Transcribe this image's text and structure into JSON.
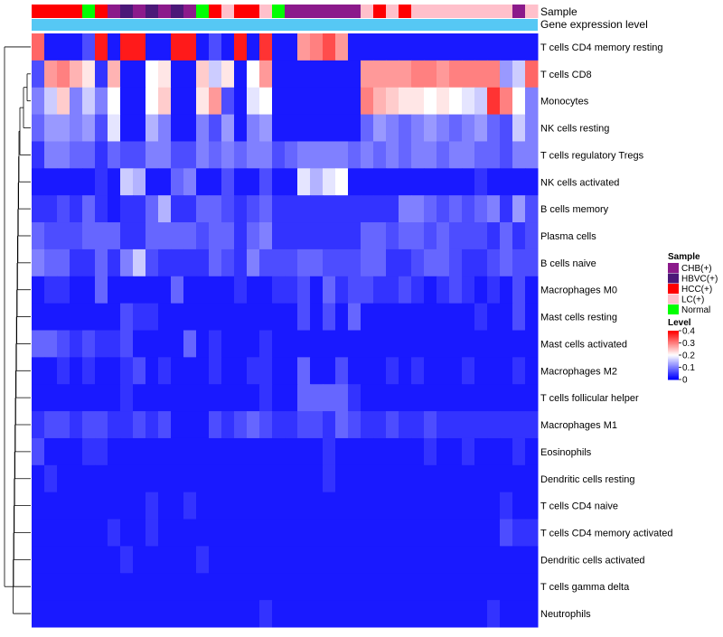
{
  "chart_data": {
    "type": "heatmap",
    "annotation_labels": [
      "Sample",
      "Gene expression level"
    ],
    "rows": [
      "T cells CD4 memory resting",
      "T cells CD8",
      "Monocytes",
      "NK cells resting",
      "T cells regulatory  Tregs",
      "NK cells activated",
      "B cells memory",
      "Plasma cells",
      "B cells naive",
      "Macrophages M0",
      "Mast cells resting",
      "Mast cells activated",
      "Macrophages M2",
      "T cells follicular helper",
      "Macrophages M1",
      "Eosinophils",
      "Dendritic cells resting",
      "T cells CD4 naive",
      "T cells CD4 memory activated",
      "Dendritic cells activated",
      "T cells gamma delta",
      "Neutrophils"
    ],
    "sample_groups": [
      "HCC(+)",
      "HCC(+)",
      "HCC(+)",
      "HCC(+)",
      "Normal",
      "HCC(+)",
      "CHB(+)",
      "HBVC(+)",
      "CHB(+)",
      "HBVC(+)",
      "CHB(+)",
      "HBVC(+)",
      "CHB(+)",
      "Normal",
      "HCC(+)",
      "LC(+)",
      "HCC(+)",
      "HCC(+)",
      "LC(+)",
      "Normal",
      "CHB(+)",
      "CHB(+)",
      "CHB(+)",
      "CHB(+)",
      "CHB(+)",
      "CHB(+)",
      "LC(+)",
      "HCC(+)",
      "LC(+)",
      "HCC(+)",
      "LC(+)",
      "LC(+)",
      "LC(+)",
      "LC(+)",
      "LC(+)",
      "LC(+)",
      "LC(+)",
      "LC(+)",
      "CHB(+)",
      "LC(+)"
    ],
    "values": [
      [
        0.32,
        0.02,
        0.02,
        0.02,
        0.06,
        0.38,
        0.02,
        0.38,
        0.38,
        0.02,
        0.02,
        0.38,
        0.38,
        0.02,
        0.06,
        0.02,
        0.38,
        0.02,
        0.36,
        0.02,
        0.02,
        0.28,
        0.3,
        0.34,
        0.28,
        0.02,
        0.02,
        0.02,
        0.02,
        0.02,
        0.02,
        0.02,
        0.02,
        0.02,
        0.02,
        0.02,
        0.02,
        0.02,
        0.02,
        0.02
      ],
      [
        0.06,
        0.28,
        0.3,
        0.26,
        0.22,
        0.04,
        0.26,
        0.02,
        0.02,
        0.2,
        0.22,
        0.02,
        0.02,
        0.24,
        0.16,
        0.22,
        0.02,
        0.2,
        0.28,
        0.02,
        0.02,
        0.02,
        0.02,
        0.02,
        0.02,
        0.02,
        0.28,
        0.28,
        0.28,
        0.28,
        0.3,
        0.3,
        0.28,
        0.3,
        0.3,
        0.3,
        0.3,
        0.12,
        0.16,
        0.32
      ],
      [
        0.1,
        0.16,
        0.24,
        0.1,
        0.16,
        0.1,
        0.2,
        0.02,
        0.02,
        0.2,
        0.24,
        0.02,
        0.02,
        0.22,
        0.28,
        0.06,
        0.02,
        0.18,
        0.2,
        0.02,
        0.02,
        0.02,
        0.02,
        0.02,
        0.02,
        0.02,
        0.3,
        0.26,
        0.24,
        0.22,
        0.22,
        0.2,
        0.22,
        0.2,
        0.18,
        0.16,
        0.36,
        0.3,
        0.2,
        0.1
      ],
      [
        0.08,
        0.12,
        0.12,
        0.1,
        0.12,
        0.06,
        0.18,
        0.02,
        0.02,
        0.14,
        0.1,
        0.02,
        0.02,
        0.1,
        0.06,
        0.12,
        0.02,
        0.1,
        0.12,
        0.02,
        0.02,
        0.02,
        0.02,
        0.02,
        0.02,
        0.02,
        0.08,
        0.12,
        0.1,
        0.08,
        0.1,
        0.12,
        0.1,
        0.08,
        0.1,
        0.12,
        0.08,
        0.06,
        0.16,
        0.1
      ],
      [
        0.04,
        0.1,
        0.1,
        0.08,
        0.08,
        0.04,
        0.08,
        0.06,
        0.06,
        0.1,
        0.1,
        0.06,
        0.06,
        0.1,
        0.08,
        0.1,
        0.08,
        0.1,
        0.1,
        0.06,
        0.08,
        0.1,
        0.1,
        0.1,
        0.1,
        0.08,
        0.1,
        0.08,
        0.1,
        0.08,
        0.1,
        0.1,
        0.08,
        0.1,
        0.1,
        0.08,
        0.08,
        0.06,
        0.1,
        0.1
      ],
      [
        0.02,
        0.02,
        0.02,
        0.02,
        0.02,
        0.04,
        0.02,
        0.16,
        0.14,
        0.02,
        0.02,
        0.08,
        0.1,
        0.02,
        0.02,
        0.06,
        0.02,
        0.02,
        0.06,
        0.02,
        0.02,
        0.18,
        0.14,
        0.18,
        0.2,
        0.02,
        0.02,
        0.02,
        0.02,
        0.02,
        0.02,
        0.02,
        0.02,
        0.02,
        0.02,
        0.04,
        0.02,
        0.02,
        0.02,
        0.02
      ],
      [
        0.04,
        0.04,
        0.06,
        0.04,
        0.08,
        0.04,
        0.02,
        0.04,
        0.04,
        0.08,
        0.14,
        0.04,
        0.04,
        0.08,
        0.08,
        0.06,
        0.04,
        0.06,
        0.08,
        0.04,
        0.04,
        0.04,
        0.04,
        0.04,
        0.04,
        0.04,
        0.04,
        0.04,
        0.04,
        0.1,
        0.1,
        0.08,
        0.06,
        0.08,
        0.06,
        0.08,
        0.1,
        0.04,
        0.12,
        0.06
      ],
      [
        0.08,
        0.06,
        0.06,
        0.06,
        0.08,
        0.08,
        0.08,
        0.04,
        0.04,
        0.08,
        0.08,
        0.08,
        0.08,
        0.06,
        0.08,
        0.08,
        0.04,
        0.08,
        0.1,
        0.04,
        0.04,
        0.04,
        0.04,
        0.04,
        0.04,
        0.04,
        0.08,
        0.08,
        0.06,
        0.08,
        0.08,
        0.06,
        0.08,
        0.06,
        0.06,
        0.06,
        0.04,
        0.08,
        0.04,
        0.06
      ],
      [
        0.1,
        0.08,
        0.08,
        0.04,
        0.04,
        0.08,
        0.04,
        0.1,
        0.16,
        0.06,
        0.04,
        0.04,
        0.04,
        0.04,
        0.08,
        0.06,
        0.04,
        0.1,
        0.06,
        0.06,
        0.06,
        0.08,
        0.08,
        0.06,
        0.06,
        0.06,
        0.08,
        0.08,
        0.04,
        0.04,
        0.06,
        0.08,
        0.08,
        0.06,
        0.04,
        0.04,
        0.06,
        0.08,
        0.06,
        0.06
      ],
      [
        0.02,
        0.04,
        0.04,
        0.02,
        0.02,
        0.08,
        0.02,
        0.02,
        0.02,
        0.02,
        0.02,
        0.08,
        0.02,
        0.02,
        0.02,
        0.02,
        0.04,
        0.02,
        0.02,
        0.04,
        0.04,
        0.06,
        0.02,
        0.08,
        0.04,
        0.06,
        0.06,
        0.04,
        0.04,
        0.06,
        0.04,
        0.02,
        0.04,
        0.06,
        0.04,
        0.02,
        0.04,
        0.02,
        0.06,
        0.02
      ],
      [
        0.02,
        0.02,
        0.02,
        0.02,
        0.02,
        0.02,
        0.02,
        0.06,
        0.04,
        0.04,
        0.02,
        0.02,
        0.02,
        0.02,
        0.02,
        0.02,
        0.02,
        0.02,
        0.02,
        0.02,
        0.02,
        0.06,
        0.02,
        0.06,
        0.02,
        0.08,
        0.02,
        0.02,
        0.02,
        0.02,
        0.02,
        0.02,
        0.02,
        0.02,
        0.02,
        0.04,
        0.02,
        0.02,
        0.06,
        0.02
      ],
      [
        0.08,
        0.08,
        0.06,
        0.04,
        0.06,
        0.04,
        0.04,
        0.06,
        0.02,
        0.02,
        0.02,
        0.02,
        0.08,
        0.02,
        0.04,
        0.02,
        0.02,
        0.02,
        0.04,
        0.02,
        0.02,
        0.02,
        0.02,
        0.02,
        0.02,
        0.02,
        0.02,
        0.02,
        0.02,
        0.02,
        0.02,
        0.02,
        0.02,
        0.02,
        0.02,
        0.02,
        0.02,
        0.02,
        0.02,
        0.02
      ],
      [
        0.02,
        0.02,
        0.04,
        0.02,
        0.04,
        0.02,
        0.02,
        0.04,
        0.06,
        0.02,
        0.04,
        0.02,
        0.02,
        0.02,
        0.04,
        0.02,
        0.02,
        0.04,
        0.04,
        0.02,
        0.02,
        0.08,
        0.02,
        0.02,
        0.06,
        0.02,
        0.02,
        0.02,
        0.04,
        0.02,
        0.04,
        0.02,
        0.02,
        0.02,
        0.04,
        0.02,
        0.02,
        0.02,
        0.04,
        0.02
      ],
      [
        0.02,
        0.02,
        0.02,
        0.02,
        0.02,
        0.02,
        0.02,
        0.04,
        0.02,
        0.02,
        0.02,
        0.02,
        0.02,
        0.02,
        0.02,
        0.02,
        0.02,
        0.02,
        0.04,
        0.02,
        0.02,
        0.08,
        0.08,
        0.08,
        0.08,
        0.04,
        0.02,
        0.02,
        0.02,
        0.02,
        0.02,
        0.02,
        0.02,
        0.02,
        0.02,
        0.02,
        0.02,
        0.02,
        0.02,
        0.02
      ],
      [
        0.04,
        0.06,
        0.06,
        0.04,
        0.06,
        0.06,
        0.04,
        0.04,
        0.06,
        0.04,
        0.06,
        0.02,
        0.02,
        0.02,
        0.06,
        0.04,
        0.06,
        0.08,
        0.06,
        0.04,
        0.04,
        0.06,
        0.06,
        0.04,
        0.08,
        0.06,
        0.04,
        0.04,
        0.06,
        0.04,
        0.04,
        0.06,
        0.04,
        0.04,
        0.04,
        0.04,
        0.04,
        0.04,
        0.04,
        0.04
      ],
      [
        0.06,
        0.02,
        0.02,
        0.02,
        0.04,
        0.04,
        0.02,
        0.02,
        0.02,
        0.02,
        0.02,
        0.02,
        0.02,
        0.02,
        0.02,
        0.02,
        0.02,
        0.02,
        0.02,
        0.02,
        0.02,
        0.02,
        0.02,
        0.04,
        0.02,
        0.02,
        0.02,
        0.02,
        0.02,
        0.02,
        0.02,
        0.04,
        0.02,
        0.02,
        0.04,
        0.02,
        0.02,
        0.02,
        0.04,
        0.02
      ],
      [
        0.02,
        0.04,
        0.02,
        0.02,
        0.02,
        0.02,
        0.02,
        0.02,
        0.02,
        0.02,
        0.02,
        0.02,
        0.02,
        0.02,
        0.02,
        0.02,
        0.02,
        0.02,
        0.02,
        0.02,
        0.02,
        0.02,
        0.02,
        0.04,
        0.02,
        0.02,
        0.02,
        0.02,
        0.02,
        0.02,
        0.02,
        0.02,
        0.02,
        0.02,
        0.02,
        0.02,
        0.02,
        0.02,
        0.02,
        0.02
      ],
      [
        0.02,
        0.02,
        0.02,
        0.02,
        0.02,
        0.02,
        0.02,
        0.02,
        0.02,
        0.04,
        0.02,
        0.02,
        0.04,
        0.02,
        0.02,
        0.02,
        0.02,
        0.02,
        0.02,
        0.02,
        0.02,
        0.02,
        0.02,
        0.02,
        0.02,
        0.02,
        0.02,
        0.02,
        0.02,
        0.02,
        0.02,
        0.02,
        0.02,
        0.02,
        0.02,
        0.02,
        0.02,
        0.04,
        0.02,
        0.02
      ],
      [
        0.02,
        0.02,
        0.02,
        0.02,
        0.02,
        0.02,
        0.04,
        0.02,
        0.02,
        0.04,
        0.02,
        0.02,
        0.02,
        0.02,
        0.02,
        0.02,
        0.02,
        0.02,
        0.02,
        0.02,
        0.02,
        0.02,
        0.02,
        0.02,
        0.02,
        0.02,
        0.02,
        0.02,
        0.02,
        0.02,
        0.02,
        0.02,
        0.02,
        0.02,
        0.02,
        0.02,
        0.02,
        0.06,
        0.04,
        0.04
      ],
      [
        0.02,
        0.02,
        0.02,
        0.02,
        0.02,
        0.02,
        0.02,
        0.04,
        0.02,
        0.02,
        0.02,
        0.02,
        0.02,
        0.04,
        0.02,
        0.02,
        0.02,
        0.02,
        0.02,
        0.02,
        0.02,
        0.02,
        0.02,
        0.02,
        0.02,
        0.02,
        0.02,
        0.02,
        0.02,
        0.02,
        0.02,
        0.02,
        0.02,
        0.02,
        0.02,
        0.02,
        0.02,
        0.02,
        0.02,
        0.02
      ],
      [
        0.02,
        0.02,
        0.02,
        0.02,
        0.02,
        0.02,
        0.02,
        0.02,
        0.02,
        0.02,
        0.02,
        0.02,
        0.02,
        0.02,
        0.02,
        0.02,
        0.02,
        0.02,
        0.02,
        0.02,
        0.02,
        0.02,
        0.02,
        0.02,
        0.02,
        0.02,
        0.02,
        0.02,
        0.02,
        0.02,
        0.02,
        0.02,
        0.02,
        0.02,
        0.02,
        0.02,
        0.02,
        0.02,
        0.02,
        0.02
      ],
      [
        0.02,
        0.02,
        0.02,
        0.02,
        0.02,
        0.02,
        0.02,
        0.02,
        0.02,
        0.02,
        0.02,
        0.02,
        0.02,
        0.02,
        0.02,
        0.02,
        0.02,
        0.02,
        0.04,
        0.02,
        0.02,
        0.02,
        0.02,
        0.02,
        0.02,
        0.02,
        0.02,
        0.02,
        0.02,
        0.02,
        0.02,
        0.02,
        0.02,
        0.02,
        0.02,
        0.02,
        0.04,
        0.02,
        0.02,
        0.02
      ]
    ],
    "legend_sample": {
      "title": "Sample",
      "entries": [
        {
          "label": "CHB(+)",
          "color": "#8b1a8b"
        },
        {
          "label": "HBVC(+)",
          "color": "#4b1878"
        },
        {
          "label": "HCC(+)",
          "color": "#ff0000"
        },
        {
          "label": "LC(+)",
          "color": "#ffc0cb"
        },
        {
          "label": "Normal",
          "color": "#00ff00"
        }
      ]
    },
    "legend_level": {
      "title": "Level",
      "ticks": [
        "0.4",
        "0.3",
        "0.2",
        "0.1",
        "0"
      ],
      "range": [
        0,
        0.4
      ]
    },
    "colors": {
      "low": "#0000ff",
      "mid": "#ffffff",
      "high": "#ff0000",
      "gene_expression_bar": "#56c8f4"
    }
  }
}
